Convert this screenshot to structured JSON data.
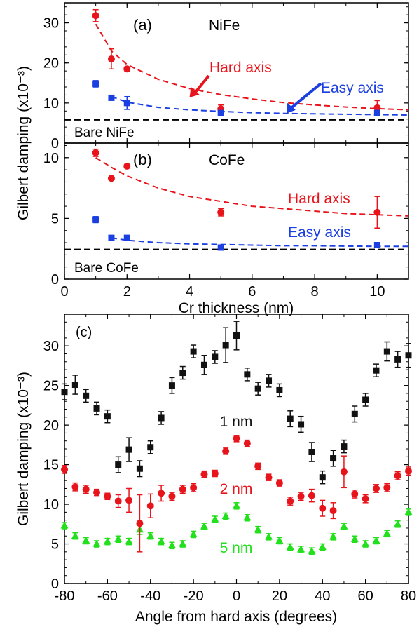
{
  "chart_data": [
    {
      "id": "a",
      "type": "scatter",
      "panel_label": "(a)",
      "material": "NiFe",
      "ylabel": "Gilbert damping  (x10⁻³)",
      "ylim": [
        0,
        35
      ],
      "xlim": [
        0,
        11
      ],
      "yticks": [
        "0",
        "10",
        "20",
        "30"
      ],
      "series": [
        {
          "name": "Hard axis",
          "color": "#e8141b",
          "marker": "circle",
          "x": [
            1,
            1.5,
            2,
            5,
            10
          ],
          "y": [
            31.8,
            21.0,
            18.5,
            8.5,
            8.8
          ],
          "err": [
            1.5,
            2.5,
            0.5,
            1.0,
            1.8
          ]
        },
        {
          "name": "Easy axis",
          "color": "#1b3fe0",
          "marker": "square",
          "x": [
            1,
            1.5,
            2,
            5,
            10
          ],
          "y": [
            14.8,
            11.3,
            10.0,
            7.5,
            7.5
          ],
          "err": [
            0.8,
            0.6,
            1.6,
            0.5,
            0.5
          ]
        }
      ],
      "fits": [
        {
          "color": "#e8141b",
          "x": [
            1,
            1.5,
            2,
            3,
            4,
            5,
            6,
            7,
            8,
            9,
            10,
            11
          ],
          "y": [
            29.7,
            23.0,
            19.6,
            15.9,
            13.6,
            12.1,
            11.0,
            10.1,
            9.5,
            9.0,
            8.6,
            8.3
          ]
        },
        {
          "color": "#1b3fe0",
          "x": [
            1.5,
            2,
            3,
            4,
            5,
            6,
            7,
            8,
            9,
            10,
            11
          ],
          "y": [
            11.6,
            10.2,
            8.9,
            8.3,
            7.9,
            7.6,
            7.4,
            7.3,
            7.2,
            7.1,
            7.0
          ]
        }
      ],
      "baseline": {
        "label": "Bare NiFe",
        "y": 5.8
      },
      "annotations": [
        {
          "text": "Hard axis",
          "color": "#e8141b",
          "arrow_to": [
            4.0,
            11.4
          ]
        },
        {
          "text": "Easy axis",
          "color": "#1b3fe0",
          "arrow_to": [
            7.1,
            7.4
          ]
        }
      ]
    },
    {
      "id": "b",
      "type": "scatter",
      "panel_label": "(b)",
      "material": "CoFe",
      "xlabel": "Cr thickness (nm)",
      "xlim": [
        0,
        11
      ],
      "ylim": [
        0,
        11.2
      ],
      "xticks": [
        "0",
        "2",
        "4",
        "6",
        "8",
        "10"
      ],
      "yticks": [
        "0",
        "5",
        "10"
      ],
      "series": [
        {
          "name": "Hard axis",
          "color": "#e8141b",
          "marker": "circle",
          "x": [
            1,
            1.5,
            2,
            5,
            10
          ],
          "y": [
            10.4,
            8.3,
            9.3,
            5.5,
            5.5
          ],
          "err": [
            0.3,
            0.15,
            0.15,
            0.3,
            1.3
          ]
        },
        {
          "name": "Easy axis",
          "color": "#1b3fe0",
          "marker": "square",
          "x": [
            1,
            1.5,
            2,
            5,
            10
          ],
          "y": [
            4.9,
            3.4,
            3.4,
            2.6,
            2.8
          ],
          "err": [
            0.25,
            0.1,
            0.1,
            0.1,
            0.15
          ]
        }
      ],
      "fits": [
        {
          "color": "#e8141b",
          "x": [
            1,
            1.5,
            2,
            3,
            4,
            5,
            6,
            7,
            8,
            9,
            10,
            11
          ],
          "y": [
            10.0,
            9.2,
            8.5,
            7.5,
            6.8,
            6.4,
            6.0,
            5.8,
            5.6,
            5.4,
            5.3,
            5.2
          ]
        },
        {
          "color": "#1b3fe0",
          "x": [
            1.5,
            2,
            3,
            4,
            5,
            6,
            7,
            8,
            9,
            10,
            11
          ],
          "y": [
            3.4,
            3.2,
            3.0,
            2.9,
            2.85,
            2.8,
            2.75,
            2.75,
            2.72,
            2.7,
            2.7
          ]
        }
      ],
      "baseline": {
        "label": "Bare CoFe",
        "y": 2.45
      },
      "annotations": [
        {
          "text": "Hard axis",
          "color": "#e8141b"
        },
        {
          "text": "Easy axis",
          "color": "#1b3fe0"
        }
      ]
    },
    {
      "id": "c",
      "type": "scatter",
      "panel_label": "(c)",
      "xlabel": "Angle from hard axis (degrees)",
      "ylabel": "Gilbert damping  (x10⁻³)",
      "xlim": [
        -80,
        80
      ],
      "ylim": [
        0,
        34
      ],
      "xticks": [
        "-80",
        "-60",
        "-40",
        "-20",
        "0",
        "20",
        "40",
        "60",
        "80"
      ],
      "yticks": [
        "0",
        "5",
        "10",
        "15",
        "20",
        "25",
        "30"
      ],
      "series": [
        {
          "name": "1 nm",
          "color": "#111111",
          "marker": "square",
          "x": [
            -80,
            -75,
            -70,
            -65,
            -60,
            -55,
            -50,
            -45,
            -40,
            -35,
            -30,
            -25,
            -20,
            -15,
            -10,
            -5,
            0,
            5,
            10,
            15,
            20,
            25,
            30,
            35,
            40,
            45,
            50,
            55,
            60,
            65,
            70,
            75,
            80
          ],
          "y": [
            24.2,
            25.1,
            23.7,
            22.1,
            21.1,
            15.0,
            16.9,
            14.5,
            17.2,
            20.9,
            25.0,
            26.6,
            29.3,
            27.6,
            28.6,
            30.1,
            31.3,
            26.4,
            24.6,
            25.6,
            24.4,
            20.8,
            20.1,
            16.6,
            13.4,
            15.8,
            17.3,
            21.4,
            23.2,
            26.9,
            29.3,
            28.3,
            28.8
          ],
          "err": [
            1.0,
            1.2,
            0.8,
            0.8,
            0.8,
            1.0,
            1.5,
            1.0,
            0.8,
            0.8,
            1.0,
            0.8,
            0.8,
            1.2,
            0.8,
            2.2,
            1.8,
            0.8,
            0.8,
            0.8,
            0.8,
            1.0,
            1.0,
            1.2,
            0.8,
            1.0,
            0.8,
            1.0,
            0.8,
            0.8,
            1.2,
            1.0,
            1.5
          ]
        },
        {
          "name": "2 nm",
          "color": "#e8141b",
          "marker": "circle",
          "x": [
            -80,
            -75,
            -70,
            -65,
            -60,
            -55,
            -50,
            -45,
            -40,
            -35,
            -30,
            -25,
            -20,
            -15,
            -10,
            -5,
            0,
            5,
            10,
            15,
            20,
            25,
            30,
            35,
            40,
            45,
            50,
            55,
            60,
            65,
            70,
            75,
            80
          ],
          "y": [
            14.4,
            12.2,
            11.9,
            11.5,
            11.0,
            10.4,
            10.5,
            7.6,
            9.8,
            11.4,
            11.0,
            11.9,
            12.1,
            13.8,
            13.9,
            16.7,
            18.3,
            17.7,
            14.8,
            13.4,
            12.7,
            10.4,
            11.0,
            11.1,
            9.5,
            9.2,
            14.1,
            11.3,
            10.7,
            12.0,
            12.1,
            13.6,
            14.2
          ],
          "err": [
            0.5,
            0.5,
            0.5,
            0.4,
            0.4,
            0.8,
            1.5,
            3.6,
            1.5,
            1.0,
            0.5,
            0.5,
            0.5,
            0.4,
            0.4,
            0.4,
            0.4,
            0.4,
            0.4,
            0.4,
            0.4,
            0.5,
            0.5,
            0.8,
            1.0,
            1.0,
            2.0,
            0.5,
            0.5,
            0.5,
            0.5,
            0.5,
            0.5
          ]
        },
        {
          "name": "5 nm",
          "color": "#22e01b",
          "marker": "triangle",
          "x": [
            -80,
            -75,
            -70,
            -65,
            -60,
            -55,
            -50,
            -45,
            -40,
            -35,
            -30,
            -25,
            -20,
            -15,
            -10,
            -5,
            0,
            5,
            10,
            15,
            20,
            25,
            30,
            35,
            40,
            45,
            50,
            55,
            60,
            65,
            70,
            75,
            80
          ],
          "y": [
            7.3,
            6.0,
            5.4,
            5.0,
            5.3,
            5.6,
            5.3,
            6.8,
            6.0,
            5.3,
            4.8,
            5.0,
            6.2,
            7.2,
            8.1,
            8.5,
            9.8,
            8.3,
            6.8,
            5.9,
            5.4,
            4.6,
            4.3,
            4.1,
            4.6,
            5.9,
            7.2,
            5.6,
            5.0,
            5.4,
            6.3,
            7.5,
            9.0
          ],
          "err": [
            0.4,
            0.4,
            0.4,
            0.4,
            0.4,
            0.4,
            0.4,
            0.6,
            0.4,
            0.4,
            0.4,
            0.4,
            0.4,
            0.4,
            0.4,
            0.4,
            0.4,
            0.4,
            0.4,
            0.4,
            0.4,
            0.4,
            0.4,
            0.4,
            0.4,
            0.4,
            0.4,
            0.4,
            0.4,
            0.4,
            0.4,
            0.4,
            0.4
          ]
        }
      ]
    }
  ]
}
